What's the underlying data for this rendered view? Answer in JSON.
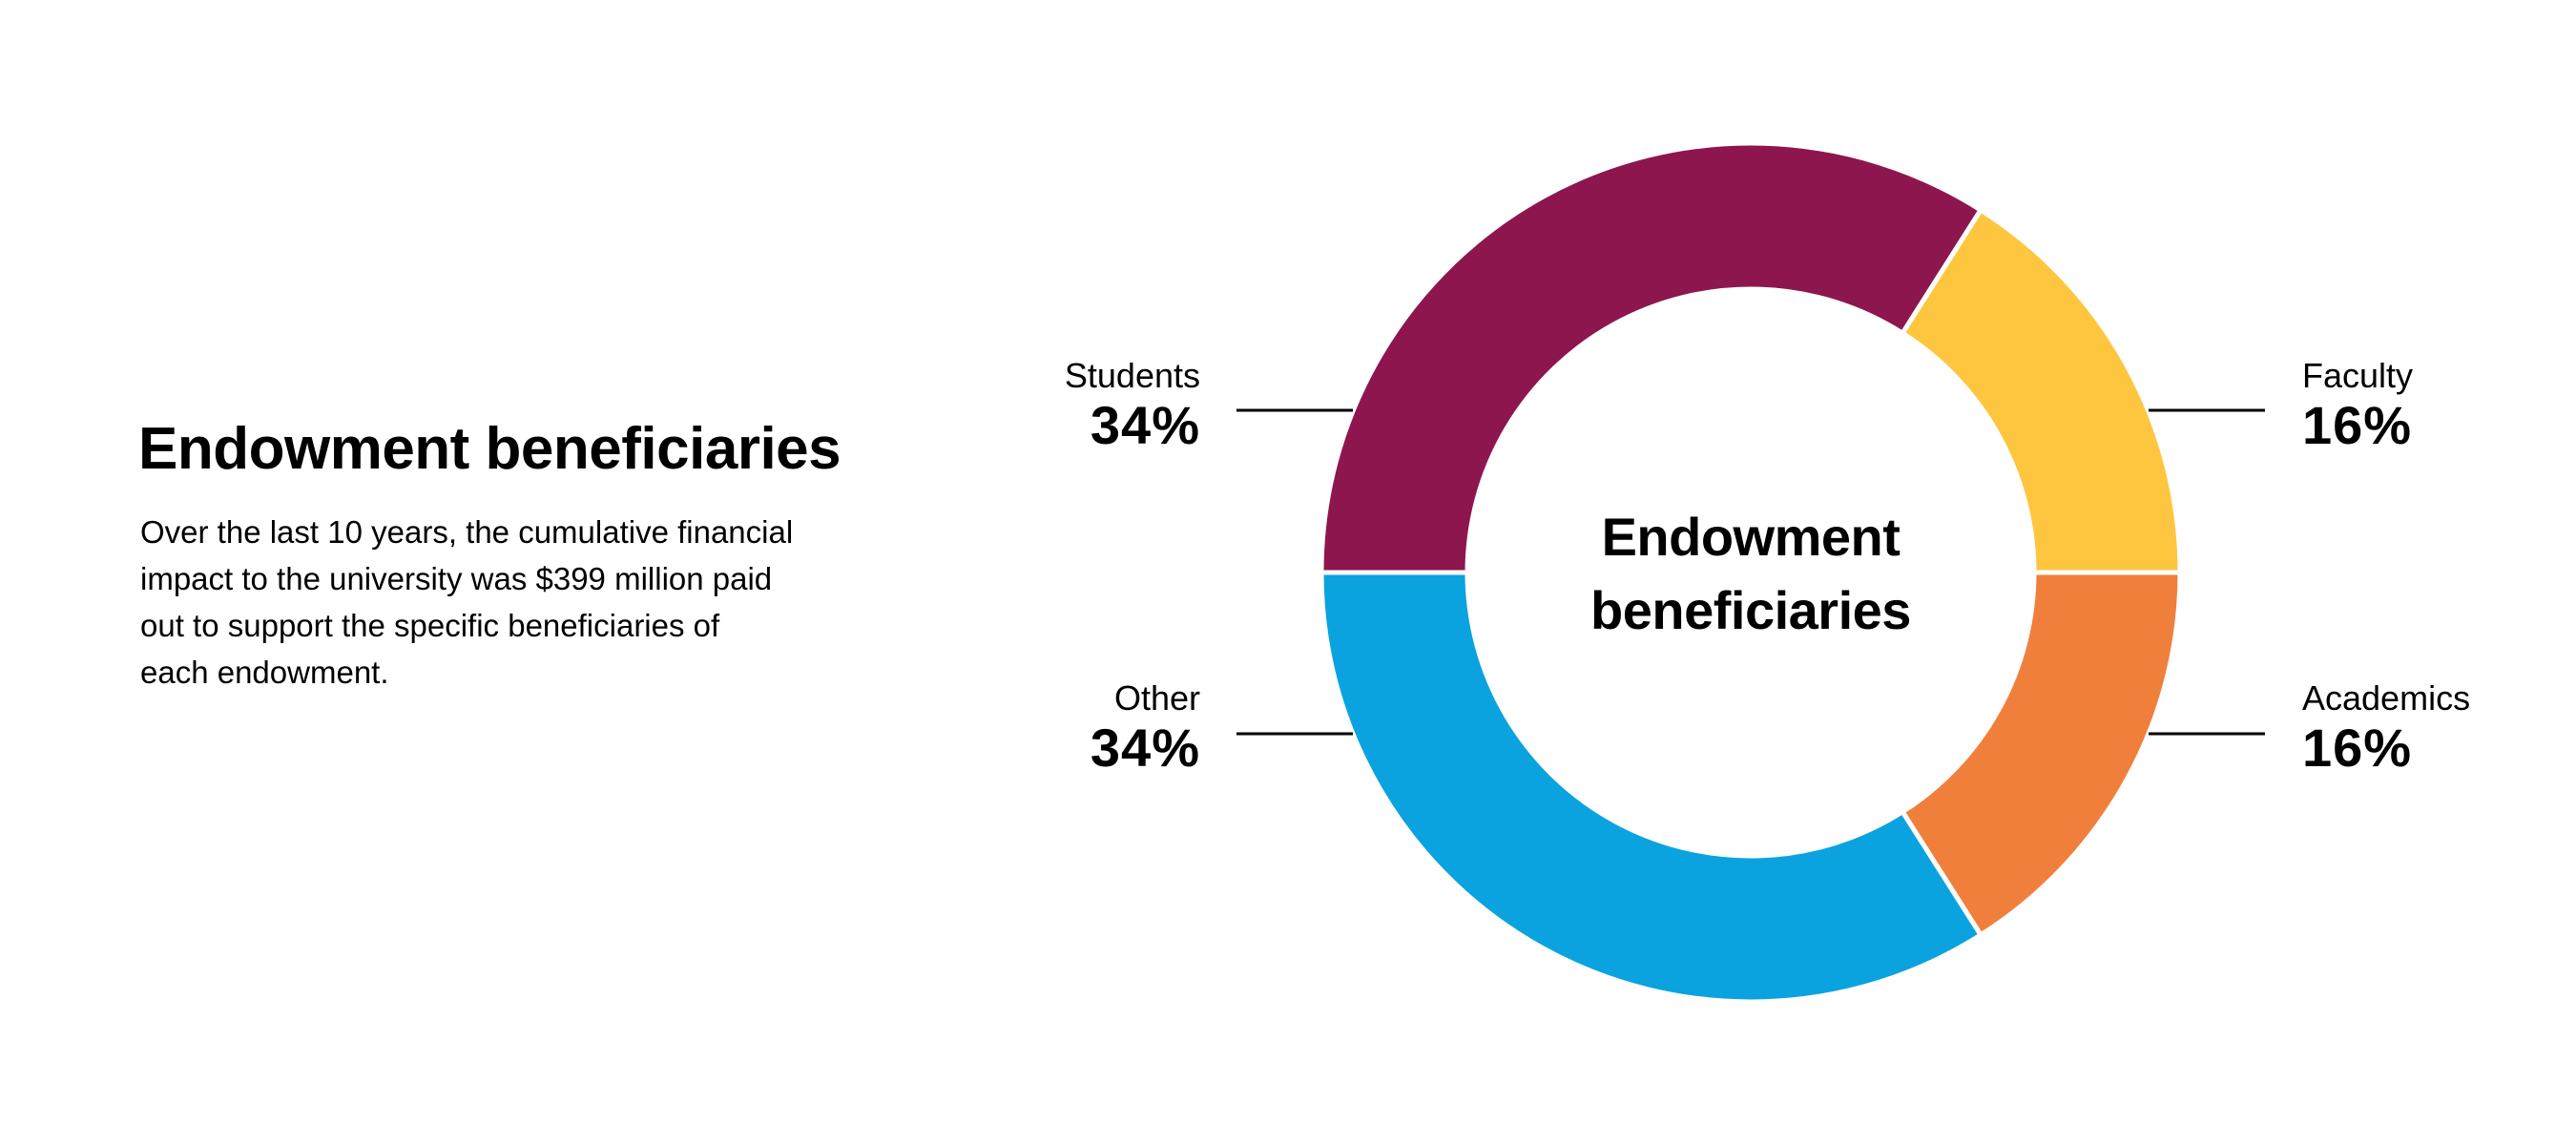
{
  "page": {
    "background_color": "#FFFFFF",
    "text_color": "#000000"
  },
  "panel": {
    "heading": "Endowment beneficiaries",
    "paragraph_lines": [
      "Over the last 10 years, the cumulative financial",
      "impact to the university was $399 million paid",
      "out to support the specific beneficiaries of",
      "each endowment."
    ]
  },
  "chart_data": {
    "type": "pie",
    "variant": "donut",
    "title": "Endowment beneficiaries",
    "center_label_lines": [
      "Endowment",
      "beneficiaries"
    ],
    "start_angle_deg": -90,
    "direction": "clockwise",
    "inner_radius_ratio": 0.66,
    "slice_gap_color": "#FFFFFF",
    "leader_line_color": "#000000",
    "categories": [
      "Students",
      "Faculty",
      "Academics",
      "Other"
    ],
    "values": [
      34,
      16,
      16,
      34
    ],
    "slices": [
      {
        "label": "Students",
        "value": 34,
        "value_label": "34%",
        "color": "#8D164F",
        "callout": "left-top"
      },
      {
        "label": "Faculty",
        "value": 16,
        "value_label": "16%",
        "color": "#FEC63F",
        "callout": "right-top"
      },
      {
        "label": "Academics",
        "value": 16,
        "value_label": "16%",
        "color": "#F17F3C",
        "callout": "right-bottom"
      },
      {
        "label": "Other",
        "value": 34,
        "value_label": "34%",
        "color": "#0AA3DF",
        "callout": "left-bottom"
      }
    ]
  }
}
